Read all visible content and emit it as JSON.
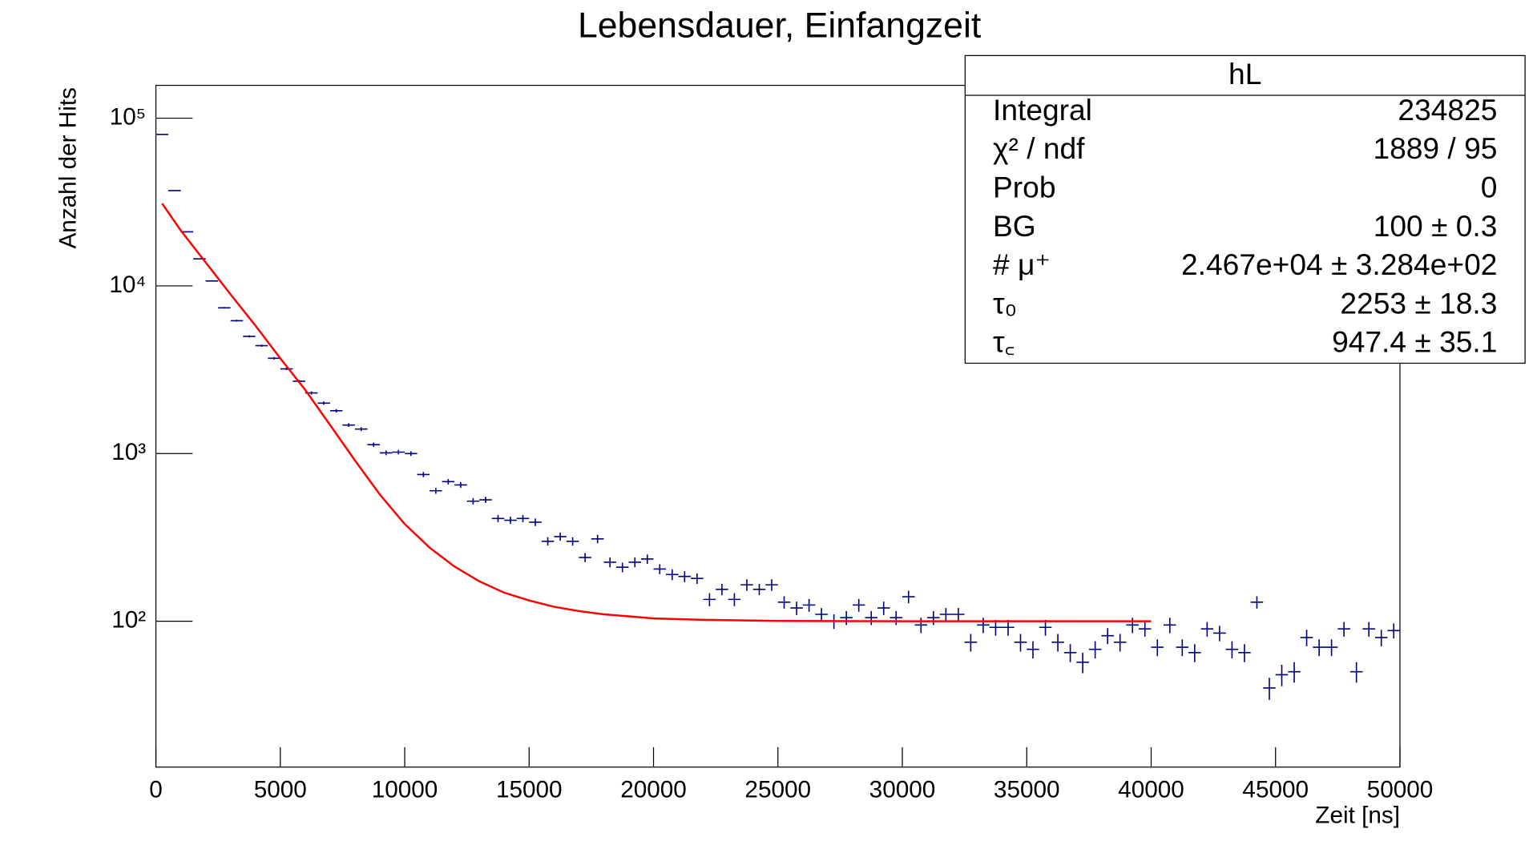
{
  "chart_data": {
    "type": "histogram",
    "title": "Lebensdauer, Einfangzeit",
    "xlabel": "Zeit [ns]",
    "ylabel": "Anzahl der Hits",
    "log_y": true,
    "color": "#000080",
    "xlim": [
      0,
      50000
    ],
    "ylim": [
      13.5,
      157000
    ],
    "xticks": [
      0,
      5000,
      10000,
      15000,
      20000,
      25000,
      30000,
      35000,
      40000,
      45000,
      50000
    ],
    "yticks": [
      {
        "value": 100,
        "label": "10²"
      },
      {
        "value": 1000,
        "label": "10³"
      },
      {
        "value": 10000,
        "label": "10⁴"
      },
      {
        "value": 100000,
        "label": "10⁵"
      }
    ],
    "bins": [
      0,
      500,
      1000,
      1500,
      2000,
      2500,
      3000,
      3500,
      4000,
      4500,
      5000,
      5500,
      6000,
      6500,
      7000,
      7500,
      8000,
      8500,
      9000,
      9500,
      10000,
      10500,
      11000,
      11500,
      12000,
      12500,
      13000,
      13500,
      14000,
      14500,
      15000,
      15500,
      16000,
      16500,
      17000,
      17500,
      18000,
      18500,
      19000,
      19500,
      20000,
      20500,
      21000,
      21500,
      22000,
      22500,
      23000,
      23500,
      24000,
      24500,
      25000,
      25500,
      26000,
      26500,
      27000,
      27500,
      28000,
      28500,
      29000,
      29500,
      30000,
      30500,
      31000,
      31500,
      32000,
      32500,
      33000,
      33500,
      34000,
      34500,
      35000,
      35500,
      36000,
      36500,
      37000,
      37500,
      38000,
      38500,
      39000,
      39500,
      40000,
      40500,
      41000,
      41500,
      42000,
      42500,
      43000,
      43500,
      44000,
      44500,
      45000,
      45500,
      46000,
      46500,
      47000,
      47500,
      48000,
      48500,
      49000,
      49500,
      50000
    ],
    "values": [
      80000,
      37000,
      21000,
      14500,
      10700,
      7400,
      6200,
      5000,
      4400,
      3700,
      3200,
      2700,
      2300,
      2000,
      1800,
      1480,
      1400,
      1130,
      1010,
      1020,
      1000,
      750,
      600,
      680,
      650,
      520,
      530,
      410,
      400,
      410,
      390,
      300,
      320,
      300,
      240,
      310,
      225,
      210,
      225,
      235,
      205,
      190,
      185,
      180,
      135,
      155,
      135,
      165,
      155,
      165,
      130,
      120,
      125,
      110,
      100,
      105,
      125,
      105,
      120,
      105,
      140,
      95,
      105,
      110,
      110,
      75,
      95,
      92,
      92,
      75,
      68,
      92,
      75,
      65,
      57,
      68,
      82,
      75,
      95,
      90,
      70,
      95,
      70,
      65,
      90,
      85,
      68,
      65,
      130,
      40,
      48,
      50,
      80,
      70,
      70,
      90,
      50,
      90,
      80,
      88
    ],
    "errors": [
      283,
      192,
      145,
      120,
      103,
      86,
      79,
      71,
      66,
      61,
      57,
      52,
      48,
      45,
      42,
      38,
      37,
      34,
      32,
      32,
      32,
      27,
      24,
      26,
      25,
      23,
      23,
      20,
      20,
      20,
      20,
      17,
      18,
      17,
      15,
      18,
      15,
      14,
      15,
      15,
      14,
      14,
      14,
      13,
      12,
      12,
      12,
      13,
      12,
      13,
      11,
      11,
      11,
      10,
      10,
      10,
      11,
      10,
      11,
      10,
      12,
      10,
      10,
      10,
      10,
      9,
      10,
      10,
      10,
      9,
      8,
      10,
      9,
      8,
      8,
      8,
      9,
      9,
      10,
      9,
      8,
      10,
      8,
      8,
      9,
      9,
      8,
      8,
      11,
      6,
      7,
      7,
      9,
      8,
      8,
      9,
      7,
      9,
      9,
      9
    ],
    "fit": {
      "color": "#ff0000",
      "x": [
        250,
        1000,
        2000,
        3000,
        4000,
        5000,
        6000,
        7000,
        8000,
        9000,
        10000,
        11000,
        12000,
        13000,
        14000,
        15000,
        16000,
        17000,
        18000,
        19000,
        20000,
        22000,
        25000,
        30000,
        35000,
        40000
      ],
      "values": [
        31000,
        21400,
        13800,
        8900,
        5800,
        3700,
        2400,
        1480,
        910,
        570,
        380,
        275,
        212,
        173,
        148,
        133,
        122,
        115,
        110,
        107,
        104,
        102,
        100.5,
        100,
        100,
        100
      ]
    },
    "stats": {
      "title": "hL",
      "rows": [
        {
          "label": "Integral",
          "value": "234825"
        },
        {
          "label": "χ² / ndf",
          "value": "1889 / 95"
        },
        {
          "label": "Prob",
          "value": "0"
        },
        {
          "label": "BG",
          "value": "100 ± 0.3"
        },
        {
          "label": "# μ⁺",
          "value": "2.467e+04 ± 3.284e+02"
        },
        {
          "label": "τ₀",
          "value": "2253 ± 18.3"
        },
        {
          "label": "τ꜀",
          "value": "947.4 ± 35.1"
        }
      ]
    }
  }
}
